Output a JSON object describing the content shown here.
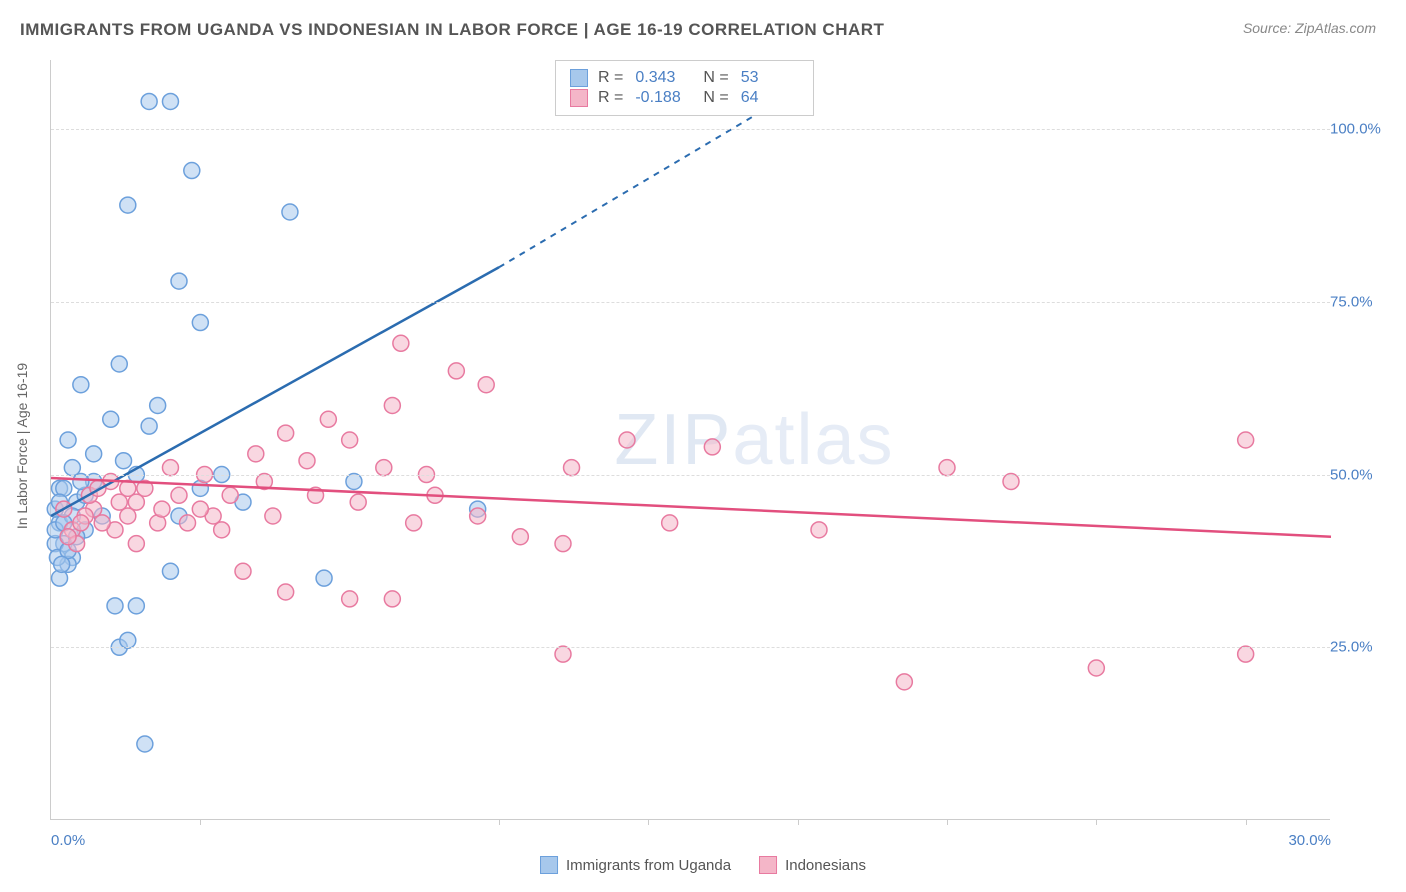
{
  "title": "IMMIGRANTS FROM UGANDA VS INDONESIAN IN LABOR FORCE | AGE 16-19 CORRELATION CHART",
  "source_label": "Source: ZipAtlas.com",
  "ylabel": "In Labor Force | Age 16-19",
  "watermark": "ZIPatlas",
  "chart": {
    "type": "scatter",
    "xlim": [
      0,
      30
    ],
    "ylim": [
      0,
      110
    ],
    "ytick_values": [
      25,
      50,
      75,
      100
    ],
    "ytick_labels": [
      "25.0%",
      "50.0%",
      "75.0%",
      "100.0%"
    ],
    "xtick_values": [
      0,
      30
    ],
    "xtick_labels": [
      "0.0%",
      "30.0%"
    ],
    "xtick_minor": [
      3.5,
      10.5,
      14,
      17.5,
      21,
      24.5,
      28
    ],
    "grid_color": "#dddddd",
    "background_color": "#ffffff",
    "series": [
      {
        "name": "Immigrants from Uganda",
        "color_fill": "#a7c8ec",
        "color_stroke": "#6ca0dc",
        "line_color": "#2b6cb0",
        "marker_radius": 8,
        "marker_opacity": 0.55,
        "R": "0.343",
        "N": "53",
        "trend": {
          "x1": 0,
          "y1": 44,
          "x2": 10.5,
          "y2": 80,
          "dash_x2": 16.5,
          "dash_y2": 102
        },
        "points": [
          [
            2.3,
            104
          ],
          [
            2.8,
            104
          ],
          [
            3.3,
            94
          ],
          [
            1.8,
            89
          ],
          [
            5.6,
            88
          ],
          [
            3.5,
            72
          ],
          [
            3.0,
            78
          ],
          [
            1.6,
            66
          ],
          [
            2.5,
            60
          ],
          [
            0.7,
            63
          ],
          [
            2.3,
            57
          ],
          [
            0.4,
            55
          ],
          [
            1.4,
            58
          ],
          [
            1.0,
            53
          ],
          [
            0.5,
            51
          ],
          [
            1.7,
            52
          ],
          [
            0.2,
            48
          ],
          [
            0.6,
            46
          ],
          [
            0.2,
            43
          ],
          [
            0.8,
            42
          ],
          [
            0.3,
            40
          ],
          [
            0.5,
            38
          ],
          [
            0.1,
            40
          ],
          [
            0.1,
            42
          ],
          [
            0.4,
            37
          ],
          [
            0.2,
            35
          ],
          [
            1.0,
            49
          ],
          [
            2.0,
            50
          ],
          [
            1.5,
            31
          ],
          [
            2.0,
            31
          ],
          [
            1.6,
            25
          ],
          [
            1.8,
            26
          ],
          [
            2.2,
            11
          ],
          [
            6.4,
            35
          ],
          [
            3.5,
            48
          ],
          [
            4.0,
            50
          ],
          [
            7.1,
            49
          ],
          [
            4.5,
            46
          ],
          [
            3.0,
            44
          ],
          [
            10.0,
            45
          ],
          [
            2.8,
            36
          ],
          [
            1.2,
            44
          ],
          [
            0.8,
            47
          ],
          [
            0.5,
            44
          ],
          [
            0.3,
            43
          ],
          [
            0.6,
            41
          ],
          [
            0.1,
            45
          ],
          [
            0.3,
            48
          ],
          [
            0.2,
            46
          ],
          [
            0.15,
            38
          ],
          [
            0.4,
            39
          ],
          [
            0.25,
            37
          ],
          [
            0.7,
            49
          ]
        ]
      },
      {
        "name": "Indonesians",
        "color_fill": "#f4b6c8",
        "color_stroke": "#e87aa0",
        "line_color": "#e24f7e",
        "marker_radius": 8,
        "marker_opacity": 0.55,
        "R": "-0.188",
        "N": "64",
        "trend": {
          "x1": 0,
          "y1": 49.5,
          "x2": 30,
          "y2": 41
        },
        "points": [
          [
            8.2,
            69
          ],
          [
            9.5,
            65
          ],
          [
            8.0,
            60
          ],
          [
            10.2,
            63
          ],
          [
            6.5,
            58
          ],
          [
            7.0,
            55
          ],
          [
            5.5,
            56
          ],
          [
            6.0,
            52
          ],
          [
            7.8,
            51
          ],
          [
            8.8,
            50
          ],
          [
            5.0,
            49
          ],
          [
            6.2,
            47
          ],
          [
            7.2,
            46
          ],
          [
            9.0,
            47
          ],
          [
            10.0,
            44
          ],
          [
            8.5,
            43
          ],
          [
            11.0,
            41
          ],
          [
            12.0,
            40
          ],
          [
            13.5,
            55
          ],
          [
            12.2,
            51
          ],
          [
            14.5,
            43
          ],
          [
            15.5,
            54
          ],
          [
            18.0,
            42
          ],
          [
            21.0,
            51
          ],
          [
            22.5,
            49
          ],
          [
            28.0,
            55
          ],
          [
            28.0,
            24
          ],
          [
            24.5,
            22
          ],
          [
            20.0,
            20
          ],
          [
            12.0,
            24
          ],
          [
            7.0,
            32
          ],
          [
            8.0,
            32
          ],
          [
            5.5,
            33
          ],
          [
            4.5,
            36
          ],
          [
            3.8,
            44
          ],
          [
            3.0,
            47
          ],
          [
            2.5,
            43
          ],
          [
            2.0,
            46
          ],
          [
            1.5,
            42
          ],
          [
            1.8,
            48
          ],
          [
            1.0,
            45
          ],
          [
            1.2,
            43
          ],
          [
            0.8,
            44
          ],
          [
            0.5,
            42
          ],
          [
            0.6,
            40
          ],
          [
            0.9,
            47
          ],
          [
            1.4,
            49
          ],
          [
            1.8,
            44
          ],
          [
            2.2,
            48
          ],
          [
            2.8,
            51
          ],
          [
            3.2,
            43
          ],
          [
            3.5,
            45
          ],
          [
            4.0,
            42
          ],
          [
            4.8,
            53
          ],
          [
            5.2,
            44
          ],
          [
            4.2,
            47
          ],
          [
            3.6,
            50
          ],
          [
            2.6,
            45
          ],
          [
            2.0,
            40
          ],
          [
            1.6,
            46
          ],
          [
            1.1,
            48
          ],
          [
            0.7,
            43
          ],
          [
            0.4,
            41
          ],
          [
            0.3,
            45
          ]
        ]
      }
    ]
  },
  "stats_box": {
    "rows": [
      {
        "swatch_fill": "#a7c8ec",
        "swatch_border": "#6ca0dc",
        "R": "0.343",
        "N": "53"
      },
      {
        "swatch_fill": "#f4b6c8",
        "swatch_border": "#e87aa0",
        "R": "-0.188",
        "N": "64"
      }
    ]
  },
  "bottom_legend": [
    {
      "swatch_fill": "#a7c8ec",
      "swatch_border": "#6ca0dc",
      "label": "Immigrants from Uganda"
    },
    {
      "swatch_fill": "#f4b6c8",
      "swatch_border": "#e87aa0",
      "label": "Indonesians"
    }
  ]
}
